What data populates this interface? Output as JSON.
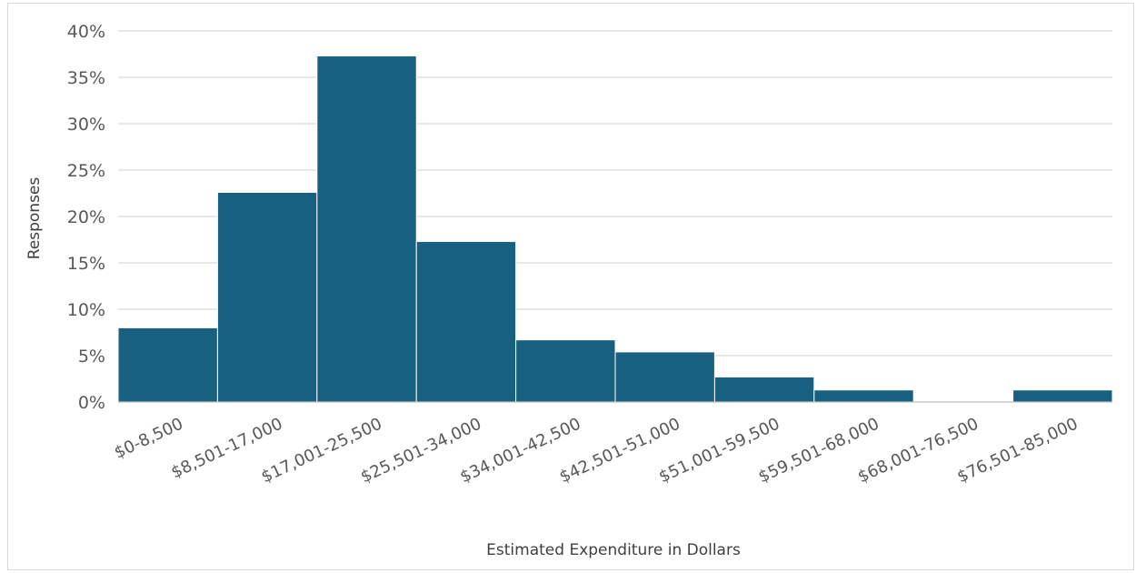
{
  "chart_data": {
    "type": "bar",
    "categories": [
      "$0-8,500",
      "$8,501-17,000",
      "$17,001-25,500",
      "$25,501-34,000",
      "$34,001-42,500",
      "$42,501-51,000",
      "$51,001-59,500",
      "$59,501-68,000",
      "$68,001-76,500",
      "$76,501-85,000"
    ],
    "values": [
      8.0,
      22.6,
      37.3,
      17.3,
      6.7,
      5.4,
      2.7,
      1.3,
      0,
      1.3
    ],
    "ylim": [
      0,
      40
    ],
    "yticks": [
      "0%",
      "5%",
      "10%",
      "15%",
      "20%",
      "25%",
      "30%",
      "35%",
      "40%"
    ],
    "xlabel": "Estimated Expenditure in Dollars",
    "ylabel": "Responses",
    "grid": true,
    "bar_color": "#17607f",
    "gap": "none"
  }
}
